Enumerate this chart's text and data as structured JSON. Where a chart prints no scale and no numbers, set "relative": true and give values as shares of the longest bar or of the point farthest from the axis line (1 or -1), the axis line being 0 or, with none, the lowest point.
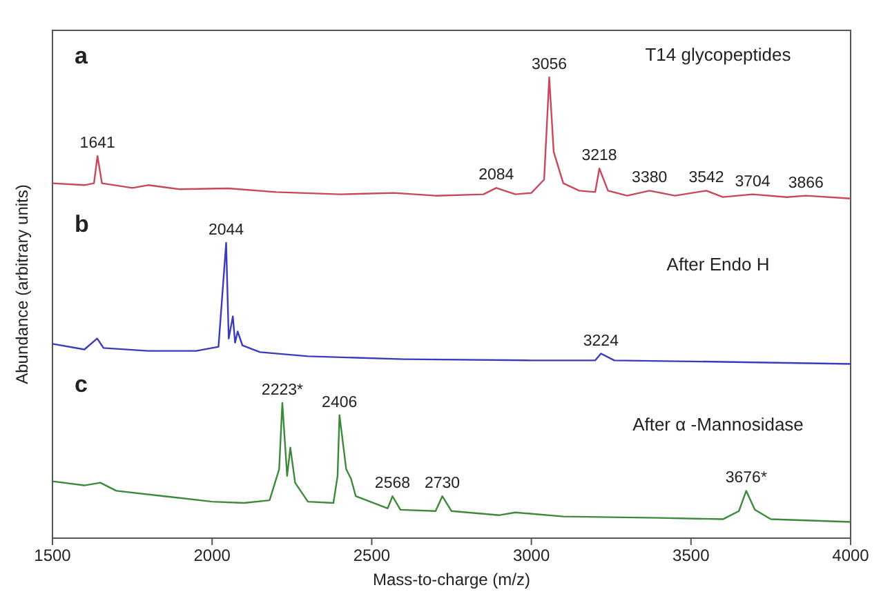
{
  "chart_data": [
    {
      "type": "line",
      "title": "a",
      "relative": true,
      "xlim": [
        1500,
        4000
      ],
      "tick_labels": false,
      "x": [
        1500,
        1600,
        1630,
        1641,
        1655,
        1750,
        1800,
        1900,
        2050,
        2200,
        2400,
        2570,
        2700,
        2850,
        2890,
        2950,
        3000,
        3040,
        3056,
        3070,
        3100,
        3150,
        3200,
        3213,
        3240,
        3300,
        3370,
        3450,
        3548,
        3600,
        3693,
        3800,
        3860,
        4000
      ],
      "series": [
        {
          "color": "#c8475a",
          "values": [
            0.77,
            0.766,
            0.77,
            0.829,
            0.77,
            0.76,
            0.766,
            0.757,
            0.759,
            0.751,
            0.746,
            0.749,
            0.743,
            0.746,
            0.76,
            0.746,
            0.749,
            0.778,
            1,
            0.838,
            0.77,
            0.754,
            0.751,
            0.802,
            0.754,
            0.743,
            0.754,
            0.743,
            0.754,
            0.74,
            0.746,
            0.74,
            0.743,
            0.737
          ]
        }
      ],
      "annotations": [
        "T14 glycopeptides",
        {
          "text": "1641",
          "x": 1641,
          "y": 0.829
        },
        {
          "text": "2084",
          "x": 2890,
          "y": 0.76
        },
        {
          "text": "3056",
          "x": 3056,
          "y": 1
        },
        {
          "text": "3218",
          "x": 3213,
          "y": 0.802
        },
        {
          "text": "3380",
          "x": 3370,
          "y": 0.754
        },
        {
          "text": "3542",
          "x": 3548,
          "y": 0.754
        },
        {
          "text": "3704",
          "x": 3693,
          "y": 0.746
        },
        {
          "text": "3866",
          "x": 3860,
          "y": 0.743
        }
      ]
    },
    {
      "type": "line",
      "title": "b",
      "relative": true,
      "xlim": [
        1500,
        4000
      ],
      "tick_labels": false,
      "ylabel": "Abundance (arbitrary units)",
      "x": [
        1500,
        1600,
        1640,
        1660,
        1800,
        1950,
        2020,
        2044,
        2052,
        2065,
        2072,
        2080,
        2095,
        2150,
        2300,
        2600,
        3000,
        3200,
        3218,
        3260,
        3600,
        4000
      ],
      "series": [
        {
          "color": "#3a3aba",
          "values": [
            0.658,
            0.639,
            0.676,
            0.644,
            0.634,
            0.634,
            0.648,
            1,
            0.676,
            0.751,
            0.662,
            0.7,
            0.653,
            0.63,
            0.616,
            0.606,
            0.602,
            0.602,
            0.625,
            0.602,
            0.597,
            0.59
          ]
        }
      ],
      "annotations": [
        "After Endo H",
        {
          "text": "2044",
          "x": 2044,
          "y": 1
        },
        {
          "text": "3224",
          "x": 3218,
          "y": 0.625
        }
      ]
    },
    {
      "type": "line",
      "title": "c",
      "relative": true,
      "xlim": [
        1500,
        4000
      ],
      "xticks": [
        1500,
        2000,
        2500,
        3000,
        3500,
        4000
      ],
      "xlabel": "Mass-to-charge (m/z)",
      "x": [
        1500,
        1600,
        1650,
        1700,
        1850,
        2000,
        2100,
        2180,
        2210,
        2220,
        2235,
        2245,
        2260,
        2300,
        2380,
        2393,
        2399,
        2420,
        2435,
        2450,
        2550,
        2565,
        2590,
        2700,
        2721,
        2750,
        2900,
        2950,
        3100,
        3400,
        3600,
        3650,
        3673,
        3700,
        3750,
        4000
      ],
      "series": [
        {
          "color": "#3a8a3a",
          "values": [
            0.42,
            0.39,
            0.41,
            0.35,
            0.31,
            0.27,
            0.26,
            0.28,
            0.51,
            1,
            0.46,
            0.67,
            0.41,
            0.27,
            0.26,
            0.46,
            0.91,
            0.51,
            0.44,
            0.31,
            0.22,
            0.31,
            0.21,
            0.2,
            0.31,
            0.2,
            0.17,
            0.19,
            0.16,
            0.15,
            0.14,
            0.2,
            0.35,
            0.21,
            0.14,
            0.12
          ]
        }
      ],
      "annotations": [
        "After α -Mannosidase",
        {
          "text": "2223*",
          "x": 2220,
          "y": 1
        },
        {
          "text": "2406",
          "x": 2399,
          "y": 0.91
        },
        {
          "text": "2568",
          "x": 2565,
          "y": 0.31
        },
        {
          "text": "2730",
          "x": 2721,
          "y": 0.31
        },
        {
          "text": "3676*",
          "x": 3673,
          "y": 0.35
        }
      ]
    }
  ]
}
